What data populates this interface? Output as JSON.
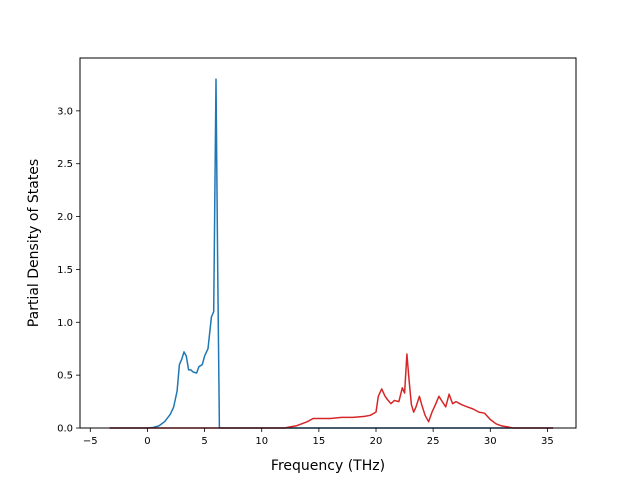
{
  "chart_data": {
    "type": "line",
    "title": "",
    "xlabel": "Frequency (THz)",
    "ylabel": "Partial Density of States",
    "xlim": [
      -5.9,
      37.5
    ],
    "ylim": [
      0,
      3.5
    ],
    "xticks": [
      -5,
      0,
      5,
      10,
      15,
      20,
      25,
      30,
      35
    ],
    "yticks": [
      0.0,
      0.5,
      1.0,
      1.5,
      2.0,
      2.5,
      3.0
    ],
    "xtick_labels": [
      "−5",
      "0",
      "5",
      "10",
      "15",
      "20",
      "25",
      "30",
      "35"
    ],
    "ytick_labels": [
      "0.0",
      "0.5",
      "1.0",
      "1.5",
      "2.0",
      "2.5",
      "3.0"
    ],
    "grid": false,
    "legend": "none",
    "series": [
      {
        "color": "#1f77b4",
        "x": [
          -3.3,
          0.0,
          0.5,
          1.0,
          1.5,
          2.0,
          2.3,
          2.6,
          2.8,
          3.0,
          3.2,
          3.4,
          3.6,
          3.8,
          4.0,
          4.3,
          4.5,
          4.8,
          5.0,
          5.3,
          5.6,
          5.8,
          6.0,
          6.15,
          6.3,
          6.32,
          7.0,
          10.0,
          15.0,
          20.0,
          25.0,
          30.0,
          35.5
        ],
        "y": [
          0.0,
          0.0,
          0.005,
          0.02,
          0.06,
          0.13,
          0.2,
          0.35,
          0.6,
          0.65,
          0.72,
          0.68,
          0.55,
          0.55,
          0.53,
          0.52,
          0.58,
          0.6,
          0.68,
          0.75,
          1.05,
          1.1,
          3.3,
          1.5,
          0.0,
          0.0,
          0.0,
          0.0,
          0.0,
          0.0,
          0.0,
          0.0,
          0.0
        ]
      },
      {
        "color": "#d62728",
        "x": [
          -3.3,
          0.0,
          5.0,
          10.0,
          12.0,
          12.5,
          13.0,
          13.5,
          14.0,
          14.5,
          15.0,
          16.0,
          17.0,
          18.0,
          19.0,
          19.5,
          20.0,
          20.2,
          20.5,
          20.8,
          21.0,
          21.3,
          21.6,
          22.0,
          22.3,
          22.5,
          22.7,
          22.9,
          23.1,
          23.3,
          23.5,
          23.8,
          24.0,
          24.3,
          24.6,
          24.9,
          25.2,
          25.5,
          25.8,
          26.1,
          26.4,
          26.7,
          27.0,
          27.5,
          28.0,
          28.5,
          29.0,
          29.5,
          30.0,
          30.5,
          31.0,
          31.5,
          32.0,
          33.0,
          35.5
        ],
        "y": [
          0.0,
          0.0,
          0.0,
          0.0,
          0.0,
          0.01,
          0.02,
          0.04,
          0.06,
          0.09,
          0.09,
          0.09,
          0.1,
          0.1,
          0.11,
          0.12,
          0.15,
          0.3,
          0.37,
          0.3,
          0.27,
          0.23,
          0.26,
          0.25,
          0.38,
          0.33,
          0.7,
          0.45,
          0.22,
          0.15,
          0.2,
          0.3,
          0.22,
          0.12,
          0.06,
          0.15,
          0.22,
          0.3,
          0.25,
          0.2,
          0.32,
          0.23,
          0.25,
          0.22,
          0.2,
          0.18,
          0.15,
          0.14,
          0.08,
          0.04,
          0.02,
          0.01,
          0.0,
          0.0,
          0.0
        ]
      }
    ]
  }
}
